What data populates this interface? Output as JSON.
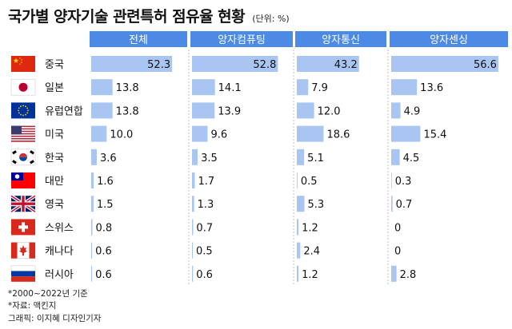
{
  "title": "국가별 양자기술 관련특허 점유율 현황",
  "unit": "(단위: %)",
  "chart_data": {
    "type": "bar",
    "title": "국가별 양자기술 관련특허 점유율 현황",
    "unit": "(단위: %)",
    "categories": [
      "중국",
      "일본",
      "유럽연합",
      "미국",
      "한국",
      "대만",
      "영국",
      "스위스",
      "캐나다",
      "러시아"
    ],
    "series": [
      {
        "name": "전체",
        "values": [
          52.3,
          13.8,
          13.8,
          10.0,
          3.6,
          1.6,
          1.5,
          0.8,
          0.6,
          0.6
        ]
      },
      {
        "name": "양자컴퓨팅",
        "values": [
          52.8,
          14.1,
          13.9,
          9.6,
          3.5,
          1.7,
          1.3,
          0.7,
          0.5,
          0.6
        ]
      },
      {
        "name": "양자통신",
        "values": [
          43.2,
          7.9,
          12.0,
          18.6,
          5.1,
          0.5,
          5.3,
          1.2,
          2.4,
          1.2
        ]
      },
      {
        "name": "양자센싱",
        "values": [
          56.6,
          13.6,
          4.9,
          15.4,
          4.5,
          0.3,
          0.7,
          0,
          0,
          2.8
        ]
      }
    ],
    "value_labels": [
      [
        "52.3",
        "13.8",
        "13.8",
        "10.0",
        "3.6",
        "1.6",
        "1.5",
        "0.8",
        "0.6",
        "0.6"
      ],
      [
        "52.8",
        "14.1",
        "13.9",
        "9.6",
        "3.5",
        "1.7",
        "1.3",
        "0.7",
        "0.5",
        "0.6"
      ],
      [
        "43.2",
        "7.9",
        "12.0",
        "18.6",
        "5.1",
        "0.5",
        "5.3",
        "1.2",
        "2.4",
        "1.2"
      ],
      [
        "56.6",
        "13.6",
        "4.9",
        "15.4",
        "4.5",
        "0.3",
        "0.7",
        "0",
        "0",
        "2.8"
      ]
    ],
    "flags": [
      "china-flag",
      "japan-flag",
      "eu-flag",
      "usa-flag",
      "korea-flag",
      "taiwan-flag",
      "uk-flag",
      "switzerland-flag",
      "canada-flag",
      "russia-flag"
    ],
    "colors": {
      "header": "#4C8AE6",
      "bar": "#A9C6F2",
      "divider": "#BFBFBF",
      "text": "#111111"
    }
  },
  "footnotes": [
    "*2000~2022년 기준",
    "*자료: 맥킨지",
    "그래픽: 이지혜 디자인기자"
  ]
}
